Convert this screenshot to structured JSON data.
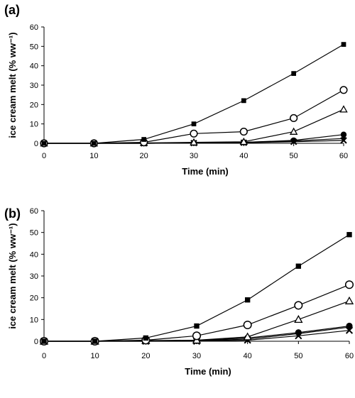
{
  "chart_data": [
    {
      "type": "line",
      "panel": "(a)",
      "xlabel": "Time (min)",
      "ylabel": "ice cream melt (% ww⁻¹)",
      "xlim": [
        0,
        60
      ],
      "ylim": [
        0,
        60
      ],
      "x": [
        0,
        10,
        20,
        30,
        40,
        50,
        60
      ],
      "xticks": [
        "0",
        "10",
        "20",
        "30",
        "40",
        "50",
        "60"
      ],
      "yticks": [
        "0",
        "10",
        "20",
        "30",
        "40",
        "50",
        "60"
      ],
      "grid": false,
      "series": [
        {
          "marker": "square",
          "values": [
            0,
            0,
            2.0,
            10.0,
            22.0,
            36.0,
            51.0
          ]
        },
        {
          "marker": "circle-open",
          "values": [
            0,
            0,
            0.5,
            5.0,
            6.0,
            13.0,
            27.5
          ]
        },
        {
          "marker": "triangle-open",
          "values": [
            0,
            0,
            0.2,
            0.5,
            0.8,
            6.0,
            17.5
          ]
        },
        {
          "marker": "circle-filled",
          "values": [
            0,
            0,
            0,
            0.2,
            0.5,
            1.5,
            4.5
          ]
        },
        {
          "marker": "diamond-filled",
          "values": [
            0,
            0,
            0,
            0.2,
            0.5,
            1.2,
            2.5
          ]
        },
        {
          "marker": "x",
          "values": [
            0,
            0,
            0,
            0.1,
            0.3,
            0.8,
            1.5
          ]
        }
      ]
    },
    {
      "type": "line",
      "panel": "(b)",
      "xlabel": "Time (min)",
      "ylabel": "ice cream melt (% ww⁻¹)",
      "xlim": [
        0,
        60
      ],
      "ylim": [
        0,
        60
      ],
      "x": [
        0,
        10,
        20,
        30,
        40,
        50,
        60
      ],
      "xticks": [
        "0",
        "10",
        "20",
        "30",
        "40",
        "50",
        "60"
      ],
      "yticks": [
        "0",
        "10",
        "20",
        "30",
        "40",
        "50",
        "60"
      ],
      "grid": false,
      "series": [
        {
          "marker": "square",
          "values": [
            0,
            0,
            1.5,
            7.0,
            19.0,
            34.5,
            49.0
          ]
        },
        {
          "marker": "circle-open",
          "values": [
            0,
            0,
            0.5,
            2.5,
            7.5,
            16.5,
            26.0
          ]
        },
        {
          "marker": "triangle-open",
          "values": [
            0,
            0,
            0.3,
            0.5,
            2.0,
            10.0,
            18.5
          ]
        },
        {
          "marker": "circle-filled",
          "values": [
            0,
            0,
            0.2,
            0.3,
            1.5,
            4.0,
            7.0
          ]
        },
        {
          "marker": "diamond-filled",
          "values": [
            0,
            0,
            0,
            0.2,
            1.0,
            3.5,
            6.5
          ]
        },
        {
          "marker": "x",
          "values": [
            0,
            0,
            0,
            0,
            0.5,
            2.5,
            5.0
          ]
        }
      ]
    }
  ]
}
